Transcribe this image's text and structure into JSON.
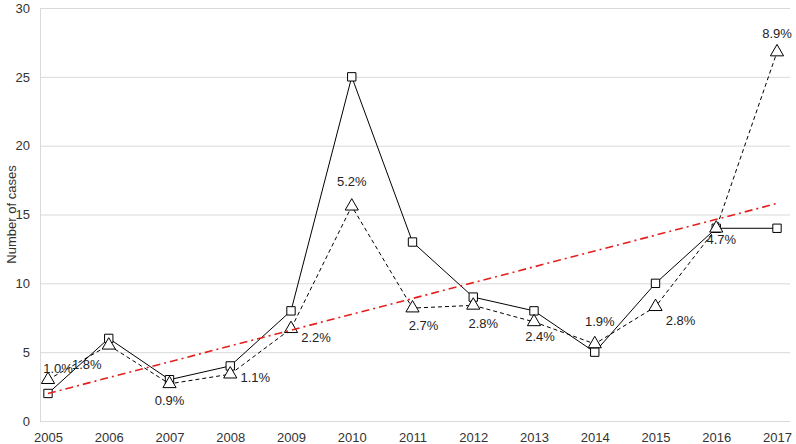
{
  "chart_data": {
    "type": "line",
    "y_label": "Number of cases",
    "categories": [
      "2005",
      "2006",
      "2007",
      "2008",
      "2009",
      "2010",
      "2011",
      "2012",
      "2013",
      "2014",
      "2015",
      "2016",
      "2017"
    ],
    "series": [
      {
        "color": "#000000",
        "marker": "square",
        "line_style": "solid",
        "values": [
          2,
          6,
          3,
          4,
          8,
          25,
          13,
          9,
          8,
          5,
          10,
          14,
          14
        ]
      },
      {
        "color": "#000000",
        "marker": "triangle",
        "line_style": "dashed",
        "values": [
          3,
          5.5,
          2.7,
          3.4,
          6.7,
          15.6,
          8.2,
          8.4,
          7.2,
          5.6,
          8.3,
          14,
          26.8
        ]
      },
      {
        "color": "#e3211c",
        "marker": "none",
        "line_style": "dashdot",
        "values": [
          2,
          3.15,
          4.3,
          5.45,
          6.6,
          7.75,
          8.9,
          10.05,
          11.2,
          12.35,
          13.5,
          14.65,
          15.8
        ]
      }
    ],
    "annotations": [
      {
        "x": "2005",
        "text": "1.0%"
      },
      {
        "x": "2006",
        "text": "1.8%"
      },
      {
        "x": "2007",
        "text": "0.9%"
      },
      {
        "x": "2008",
        "text": "1.1%"
      },
      {
        "x": "2009",
        "text": "2.2%"
      },
      {
        "x": "2010",
        "text": "5.2%"
      },
      {
        "x": "2011",
        "text": "2.7%"
      },
      {
        "x": "2012",
        "text": "2.8%"
      },
      {
        "x": "2013",
        "text": "2.4%"
      },
      {
        "x": "2014",
        "text": "1.9%"
      },
      {
        "x": "2015",
        "text": "2.8%"
      },
      {
        "x": "2016",
        "text": "4.7%"
      },
      {
        "x": "2017",
        "text": "8.9%"
      }
    ],
    "ylim": [
      0,
      30
    ],
    "yticks": [
      0,
      5,
      10,
      15,
      20,
      25,
      30
    ],
    "grid": true
  }
}
